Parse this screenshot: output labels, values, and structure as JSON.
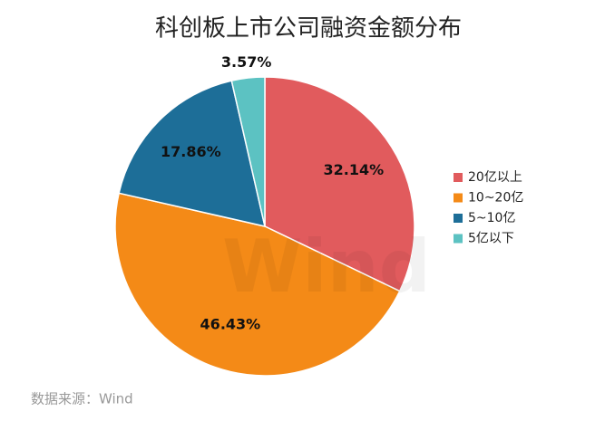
{
  "chart_data": {
    "type": "pie",
    "title": "科创板上市公司融资金额分布",
    "categories": [
      "20亿以上",
      "10~20亿",
      "5~10亿",
      "5亿以下"
    ],
    "values": [
      32.14,
      46.43,
      17.86,
      3.57
    ],
    "value_labels": [
      "32.14%",
      "46.43%",
      "17.86%",
      "3.57%"
    ],
    "colors": [
      "#e15b5d",
      "#f48a17",
      "#1d6e98",
      "#5cc2c2"
    ],
    "legend": "right",
    "source": "数据来源：Wind",
    "watermark": "Wind"
  }
}
